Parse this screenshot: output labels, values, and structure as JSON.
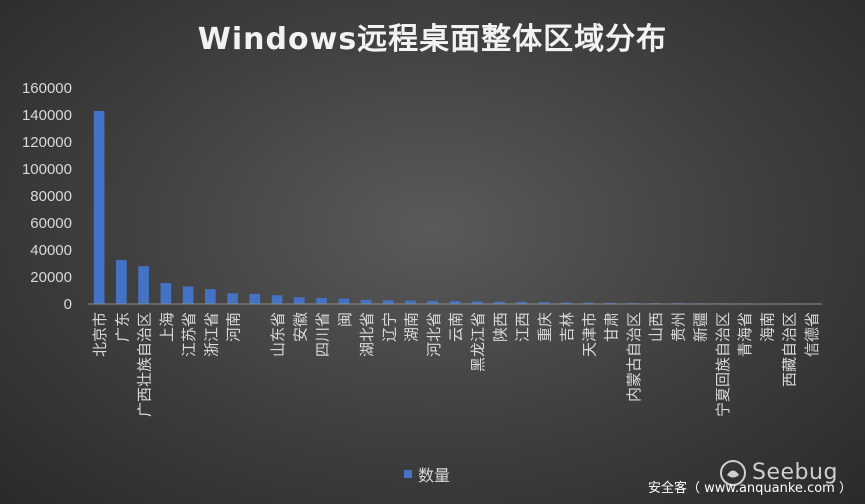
{
  "chart_data": {
    "type": "bar",
    "title": "Windows远程桌面整体区域分布",
    "categories": [
      "北京市",
      "广东",
      "广西壮族自治区",
      "上海",
      "江苏省",
      "浙江省",
      "河南",
      "",
      "山东省",
      "安徽",
      "四川省",
      "闽",
      "湖北省",
      "辽宁",
      "湖南",
      "河北省",
      "云南",
      "黑龙江省",
      "陕西",
      "江西",
      "重庆",
      "吉林",
      "天津市",
      "甘肃",
      "内蒙古自治区",
      "山西",
      "贵州",
      "新疆",
      "宁夏回族自治区",
      "青海省",
      "海南",
      "西藏自治区",
      "信德省"
    ],
    "series": [
      {
        "name": "数量",
        "values": [
          143000,
          32500,
          28000,
          15500,
          13000,
          11000,
          8000,
          7500,
          6500,
          5000,
          4500,
          4000,
          3000,
          2800,
          2500,
          2300,
          2100,
          1900,
          1700,
          1500,
          1300,
          1100,
          900,
          800,
          700,
          650,
          600,
          550,
          500,
          400,
          300,
          250,
          200
        ],
        "color": "#4472c4"
      }
    ],
    "ylim": [
      0,
      160000
    ],
    "yticks": [
      "0",
      "20000",
      "40000",
      "60000",
      "80000",
      "100000",
      "120000",
      "140000",
      "160000"
    ],
    "legend": "bottom",
    "grid": false
  },
  "watermark": {
    "brand": "Seebug",
    "site": "安全客（ www.anquanke.com ）"
  }
}
